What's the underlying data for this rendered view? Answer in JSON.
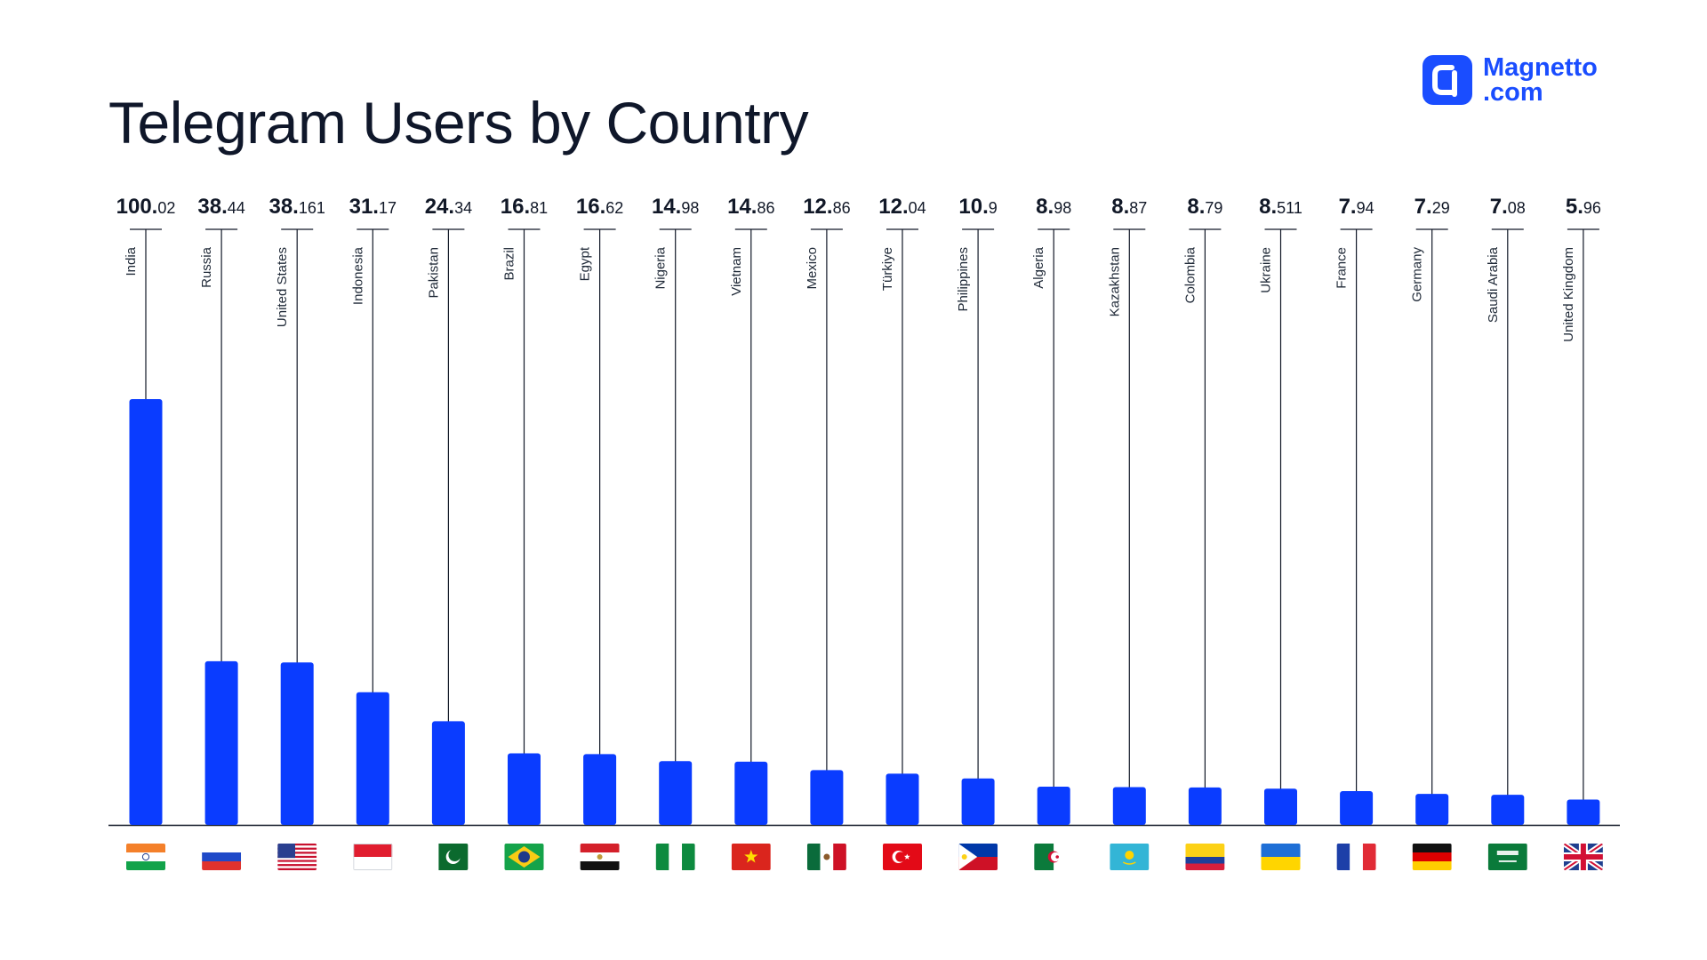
{
  "title": "Telegram Users by Country",
  "logo": {
    "line1": "Magnetto",
    "line2": ".com"
  },
  "colors": {
    "bar": "#0a3cff",
    "axis": "#111827",
    "brand": "#1a4dff"
  },
  "chart_data": {
    "type": "bar",
    "title": "Telegram Users by Country",
    "xlabel": "",
    "ylabel": "",
    "ylim": [
      0,
      100.02
    ],
    "grid": false,
    "categories": [
      "India",
      "Russia",
      "United States",
      "Indonesia",
      "Pakistan",
      "Brazil",
      "Egypt",
      "Nigeria",
      "Vietnam",
      "Mexico",
      "Türkiye",
      "Philippines",
      "Algeria",
      "Kazakhstan",
      "Colombia",
      "Ukraine",
      "France",
      "Germany",
      "Saudi Arabia",
      "United Kingdom"
    ],
    "values": [
      100.02,
      38.44,
      38.161,
      31.17,
      24.34,
      16.81,
      16.62,
      14.98,
      14.86,
      12.86,
      12.04,
      10.9,
      8.98,
      8.87,
      8.79,
      8.511,
      7.94,
      7.29,
      7.08,
      5.96
    ],
    "value_labels": [
      {
        "int": "100.",
        "dec": "02"
      },
      {
        "int": "38.",
        "dec": "44"
      },
      {
        "int": "38.",
        "dec": "161"
      },
      {
        "int": "31.",
        "dec": "17"
      },
      {
        "int": "24.",
        "dec": "34"
      },
      {
        "int": "16.",
        "dec": "81"
      },
      {
        "int": "16.",
        "dec": "62"
      },
      {
        "int": "14.",
        "dec": "98"
      },
      {
        "int": "14.",
        "dec": "86"
      },
      {
        "int": "12.",
        "dec": "86"
      },
      {
        "int": "12.",
        "dec": "04"
      },
      {
        "int": "10.",
        "dec": "9"
      },
      {
        "int": "8.",
        "dec": "98"
      },
      {
        "int": "8.",
        "dec": "87"
      },
      {
        "int": "8.",
        "dec": "79"
      },
      {
        "int": "8.",
        "dec": "511"
      },
      {
        "int": "7.",
        "dec": "94"
      },
      {
        "int": "7.",
        "dec": "29"
      },
      {
        "int": "7.",
        "dec": "08"
      },
      {
        "int": "5.",
        "dec": "96"
      }
    ],
    "flags": [
      "india-flag-icon",
      "russia-flag-icon",
      "usa-flag-icon",
      "indonesia-flag-icon",
      "pakistan-flag-icon",
      "brazil-flag-icon",
      "egypt-flag-icon",
      "nigeria-flag-icon",
      "vietnam-flag-icon",
      "mexico-flag-icon",
      "turkey-flag-icon",
      "philippines-flag-icon",
      "algeria-flag-icon",
      "kazakhstan-flag-icon",
      "colombia-flag-icon",
      "ukraine-flag-icon",
      "france-flag-icon",
      "germany-flag-icon",
      "saudi-arabia-flag-icon",
      "uk-flag-icon"
    ]
  }
}
